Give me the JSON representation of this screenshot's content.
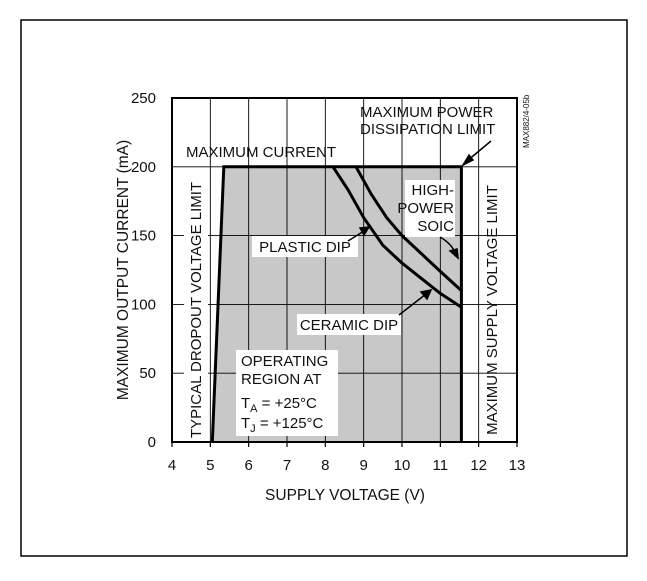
{
  "chart_data": {
    "type": "area",
    "xlabel": "SUPPLY VOLTAGE (V)",
    "ylabel": "MAXIMUM OUTPUT CURRENT (mA)",
    "xlim": [
      4,
      13
    ],
    "ylim": [
      0,
      250
    ],
    "x_ticks": [
      "4",
      "5",
      "6",
      "7",
      "8",
      "9",
      "10",
      "11",
      "12",
      "13"
    ],
    "y_ticks": [
      "0",
      "50",
      "100",
      "150",
      "200",
      "250"
    ],
    "grid": true,
    "figure_code": "MAX882/4-05b",
    "operating_region": [
      [
        5.05,
        0
      ],
      [
        5.35,
        200
      ],
      [
        11.55,
        200
      ],
      [
        11.55,
        0
      ]
    ],
    "series": [
      {
        "name": "PLASTIC DIP",
        "x": [
          8.2,
          8.6,
          9.0,
          9.5,
          10.0,
          10.5,
          11.0,
          11.55
        ],
        "y": [
          200,
          183,
          163,
          143,
          130,
          119,
          108,
          98
        ]
      },
      {
        "name": "HIGH-POWER SOIC",
        "x": [
          8.8,
          9.2,
          9.6,
          10.0,
          10.5,
          11.0,
          11.55
        ],
        "y": [
          200,
          180,
          163,
          150,
          137,
          124,
          110
        ]
      }
    ],
    "annotations": {
      "max_current": "MAXIMUM CURRENT",
      "max_power_1": "MAXIMUM POWER",
      "max_power_2": "DISSIPATION LIMIT",
      "high_power_1": "HIGH-",
      "high_power_2": "POWER",
      "high_power_3": "SOIC",
      "plastic_dip": "PLASTIC DIP",
      "ceramic_dip": "CERAMIC DIP",
      "dropout_limit": "TYPICAL DROPOUT VOLTAGE LIMIT",
      "supply_limit": "MAXIMUM SUPPLY VOLTAGE LIMIT",
      "region_1": "OPERATING",
      "region_2": "REGION AT",
      "ta_sym": "T",
      "ta_sub": "A",
      "ta_val": " = +25°C",
      "tj_sym": "T",
      "tj_sub": "J",
      "tj_val": " = +125°C"
    },
    "colors": {
      "region_fill": "#c8c8c8",
      "line": "#000000",
      "grid": "#000000"
    }
  }
}
